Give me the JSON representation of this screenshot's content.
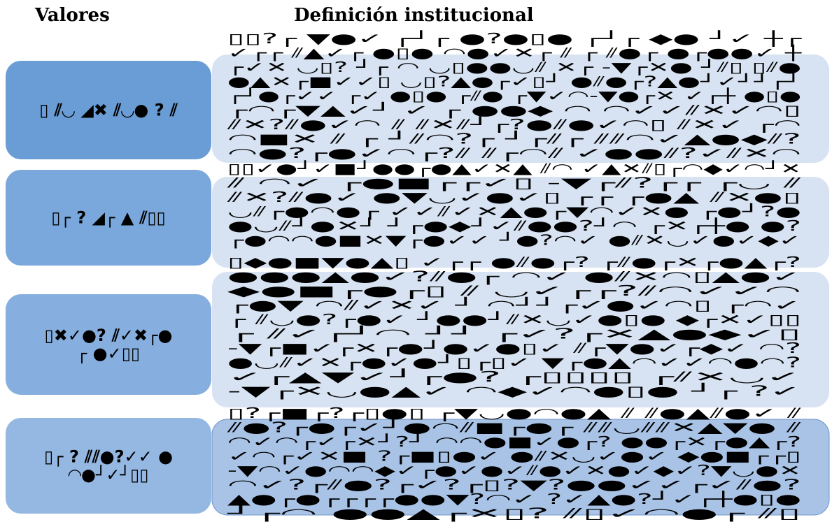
{
  "headers": {
    "values": "Valores",
    "definitions": "Definición institucional"
  },
  "rows": [
    {
      "value": [
        "▯ ⫽◡ ◢✖ ⫽◡● ? ⫽"
      ],
      "definition": [
        "▯▯?┌   ▼●✓     ┌┘┌ ●?●▯●      ┌┘┌  ◆●  ┘✓   ┼┌",
        "✓┌┌  ⫽▲✓┌ ●▯●  ◠●✓✕┌  ⫽  ┌ ⫽●┌ ●┌●●✓  ┼",
        "┌✓✕ ◡▯?  ┘┌  ◠ ◡▯●●◡⫽  ✕┌ -▼┌✕● ┘⫽▯ ▯⫽●",
        "●▲✕┌■✓✓▯  ◡▯?▲●┌✓▯┘  ●⫽●┌?▲●┘✓┘┘┌┘",
        "┌┘●┌✓✓ ┌✓ ●▯● ┌⫽●  ┌▼✓◠-▼●┌✕ ✓┌┼ ●▯●",
        "┌◠┌▼▲✓┘  ✓     ┌  ●●◆  ◠  ◠✓✓⫽✕✓◠▯",
        "⫽✕?⫽●✓◠  ⫽  ⫽✕⫽┘┌?●⫽●✓◠▯  ⫽✕✓ ┌◠",
        "◠■✕ ⫽   ┌  ┘⫽◠?┌  ┘┌⫽┌ ⫽⫽◠✓▲●◆⫽?",
        "◠●?┌●✓◠┌?⫽  ⫽┌◠⫽ ✓●●⫽?✓⫽✕◠"
      ]
    },
    {
      "value": [
        "▯┌ ? ◢┌ ▲ ⫽▯▯"
      ],
      "definition": [
        "▯▯✓●┘✓■┘●●┌●▲✓✕▲ ⫽◠ ✓▲✕⫽▯┌◠◆✓◠┘✕",
        "⫽ ◠✓ ┌●■┌┌✓▯  -▼┌⫽?┌┌   ┌◡ ⫽",
        "⫽✕?⫽●✓ ●▼◡✓●✓▯ ┌┌  ┌●▲ ⫽✕●▯",
        "◡⫽┌●◠●┌  ✓✓⫽✓✕▲●┌▼◠✓✕●  ┌●┘?●",
        "●◡⫽┘●✕┘ ┘┌●◆┘✓⫽●●?┘◠ ┌✕┌┼● ●?",
        "┌●◠◠●■✕▼┌●✓✓ ┘●?◠✓ ●⫽✕◡✓●✓◆✓"
      ]
    },
    {
      "value": [
        "▯✖✓●? ⫽✓✖┌●",
        "┌ ●✓▯▯"
      ],
      "definition": [
        "▯◆●■▼●▲▯ ✓┌┌ ●⫽●┌? ┌⫽●┌✕┌●▲┌?",
        "●●●▲●✓?⫽●┌ ◠✓  ●⫽✕◠▯▲●✓",
        "◆●■┌●┌▯   ⫽  ◡✓┌┌?⫽◠✓✓◠",
        "┌●▼ ◠⫽✓✕✓  ┘ ◠┘┘┌✓●✓◠▯ ┌◠✓",
        "┌ ⫽◡●?┌●✓ ┘●●┘⫽✕◡✓●▯● ◆┌✕✓▯▯",
        "┌ ⫽✓┌┘◠   ┘┘ ┌✓?┌✕▲●◆✓▯",
        "-▼┌■✓┌✕┌●┘●✓●▯✓ ⫽┌▼●✓┌◆✓ ◠?",
        "●◡⫽✓✕┌●✓●┘▯┌▯✓ ▼┌●▲◠✓✓◠●◠?",
        "✓┌▲▼✓┘┌●?  ┌▯▯▯▯  ┌⫽✕◡✓",
        "-▼┌✕◡●▲✓  ◠◆✓◠●▯● ┘┌  ?✓"
      ]
    },
    {
      "value": [
        "▯┌ ? ⫽⫽●?✓✓ ●",
        "◠●┘✓┘▯▯"
      ],
      "definition": [
        "▯?┌■┌?┌▯●▯ ┌▼◡●◠●▲ ⫽ ⫽●▲⫽●✓ ⫽",
        "⫽●?┌●┌✓┘●◠⫽■┌●┌ ⫽⫽◡⫽⫽✕▲▼● ⫽",
        "◠✓◠┌✓┌✕┘?┘ ◠◠●■✓●┌? ●●┌✕┌●▲┌?",
        "✓◠┌✓✕■ ?┌■▯●✓ ●⫽✕◡✓●✓ ◆●■┌┌▯",
        "-▼◠✓●◠◠◆✓┌●✓●✓⫽●✓✕●✓◆✓?▼◡●✕",
        "◠✓?┌⫽●?┌✓?┌▯?▼?●●✓✓┌✓⫽●?",
        "▲●┌●┌┌┌┌●●▼?◠✓ ?✓▲●?┘✓┌┼●▯●",
        "┘┌◠ ●●▲┌✕▯? ⫽▯✓◠●┌ ⫽▯"
      ]
    }
  ]
}
